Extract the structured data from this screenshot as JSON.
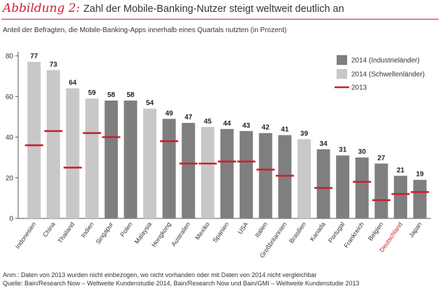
{
  "header": {
    "figure_label": "Abbildung 2:",
    "title": "Zahl der Mobile-Banking-Nutzer steigt weltweit deutlich an"
  },
  "subtitle": "Anteil der Befragten, die Mobile-Banking-Apps innerhalb eines Quartals nutzten (in Prozent)",
  "footnotes": {
    "note": "Anm.: Daten von 2013 wurden nicht einbezogen, wo nicht vorhanden oder mit Daten von 2014 nicht vergleichbar",
    "source": "Quelle: Bain/Research Now – Weltweite Kundenstudie 2014, Bain/Research Now und Bain/GMI – Weltweite Kundenstudie 2013"
  },
  "colors": {
    "industrial": "#7f7f7f",
    "emerging": "#c8c8c8",
    "marker_2013": "#cc1f2f",
    "highlight_label": "#cc1f2f"
  },
  "chart_data": {
    "type": "bar",
    "ylim": [
      0,
      80
    ],
    "yticks": [
      0,
      20,
      40,
      60,
      80
    ],
    "grid": false,
    "legend_position": "top-right",
    "legend": [
      {
        "label": "2014 (Industrieländer)",
        "kind": "industrial"
      },
      {
        "label": "2014 (Schwellenländer)",
        "kind": "emerging"
      },
      {
        "label": "2013",
        "kind": "marker_2013"
      }
    ],
    "categories": [
      "Indonesien",
      "China",
      "Thailand",
      "Indien",
      "Singapur",
      "Polen",
      "Malaysia",
      "Hongkong",
      "Australien",
      "Mexiko",
      "Spanien",
      "USA",
      "Italien",
      "Großbritannien",
      "Brasilien",
      "Kanada",
      "Portugal",
      "Frankreich",
      "Belgien",
      "Deutschland",
      "Japan"
    ],
    "series": [
      {
        "name": "2014",
        "values": [
          77,
          73,
          64,
          59,
          58,
          58,
          54,
          49,
          47,
          45,
          44,
          43,
          42,
          41,
          39,
          34,
          31,
          30,
          27,
          21,
          19
        ]
      },
      {
        "name": "2013",
        "values": [
          36,
          43,
          25,
          42,
          40,
          null,
          null,
          38,
          27,
          27,
          28,
          28,
          24,
          21,
          null,
          15,
          null,
          18,
          9,
          12,
          13
        ]
      }
    ],
    "group": [
      "emerging",
      "emerging",
      "emerging",
      "emerging",
      "industrial",
      "industrial",
      "emerging",
      "industrial",
      "industrial",
      "emerging",
      "industrial",
      "industrial",
      "industrial",
      "industrial",
      "emerging",
      "industrial",
      "industrial",
      "industrial",
      "industrial",
      "industrial",
      "industrial"
    ],
    "highlight_category": "Deutschland"
  }
}
